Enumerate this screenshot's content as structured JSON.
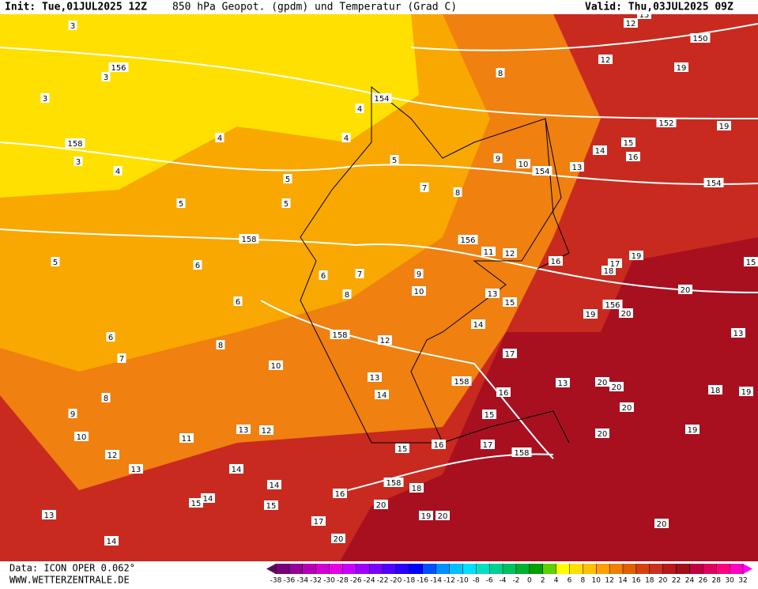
{
  "header": {
    "init": "Init: Tue,01JUL2025 12Z",
    "title": "850 hPa Geopot. (gpdm) und Temperatur (Grad C)",
    "valid": "Valid: Thu,03JUL2025 09Z"
  },
  "contour_labels": [
    3,
    3,
    3,
    3,
    156,
    158,
    4,
    4,
    4,
    4,
    154,
    5,
    5,
    5,
    5,
    5,
    158,
    6,
    6,
    6,
    8,
    7,
    9,
    7,
    8,
    9,
    8,
    10,
    154,
    156,
    11,
    12,
    10,
    13,
    15,
    14,
    158,
    12,
    10,
    8,
    6,
    7,
    8,
    9,
    10,
    11,
    13,
    12,
    12,
    13,
    14,
    14,
    15,
    14,
    15,
    13,
    14,
    13,
    14,
    158,
    15,
    16,
    17,
    13,
    15,
    16,
    17,
    158,
    158,
    18,
    16,
    20,
    19,
    20,
    20,
    17,
    20,
    20,
    20,
    20,
    20,
    20,
    156,
    19,
    20,
    18,
    17,
    19,
    16,
    14,
    15,
    16,
    13,
    152,
    19,
    19,
    154,
    150,
    12,
    12,
    19,
    13,
    18,
    19,
    19,
    15,
    15
  ],
  "footer": {
    "source": "Data: ICON OPER 0.062°",
    "site": "WWW.WETTERZENTRALE.DE"
  },
  "colorbar": {
    "ticks": [
      -38,
      -36,
      -34,
      -32,
      -30,
      -28,
      -26,
      -24,
      -22,
      -20,
      -18,
      -16,
      -14,
      -12,
      -10,
      -8,
      -6,
      -4,
      -2,
      0,
      2,
      4,
      6,
      8,
      10,
      12,
      14,
      16,
      18,
      20,
      22,
      24,
      26,
      28,
      30,
      32
    ],
    "colors": [
      "#5a0a5a",
      "#780078",
      "#960096",
      "#b400b4",
      "#d200d2",
      "#e600e6",
      "#c800ff",
      "#a000ff",
      "#7800ff",
      "#5000ff",
      "#2800ff",
      "#0000ff",
      "#0050ff",
      "#0090ff",
      "#00c0ff",
      "#00e0ff",
      "#00e0c0",
      "#00d090",
      "#00c060",
      "#00b030",
      "#00a000",
      "#60d000",
      "#ffff00",
      "#ffe000",
      "#ffc000",
      "#ffa000",
      "#f08000",
      "#e06000",
      "#d84010",
      "#c83020",
      "#b81818",
      "#a01018",
      "#c00040",
      "#e00060",
      "#ff0080",
      "#ff00c0",
      "#ff00ff"
    ]
  }
}
